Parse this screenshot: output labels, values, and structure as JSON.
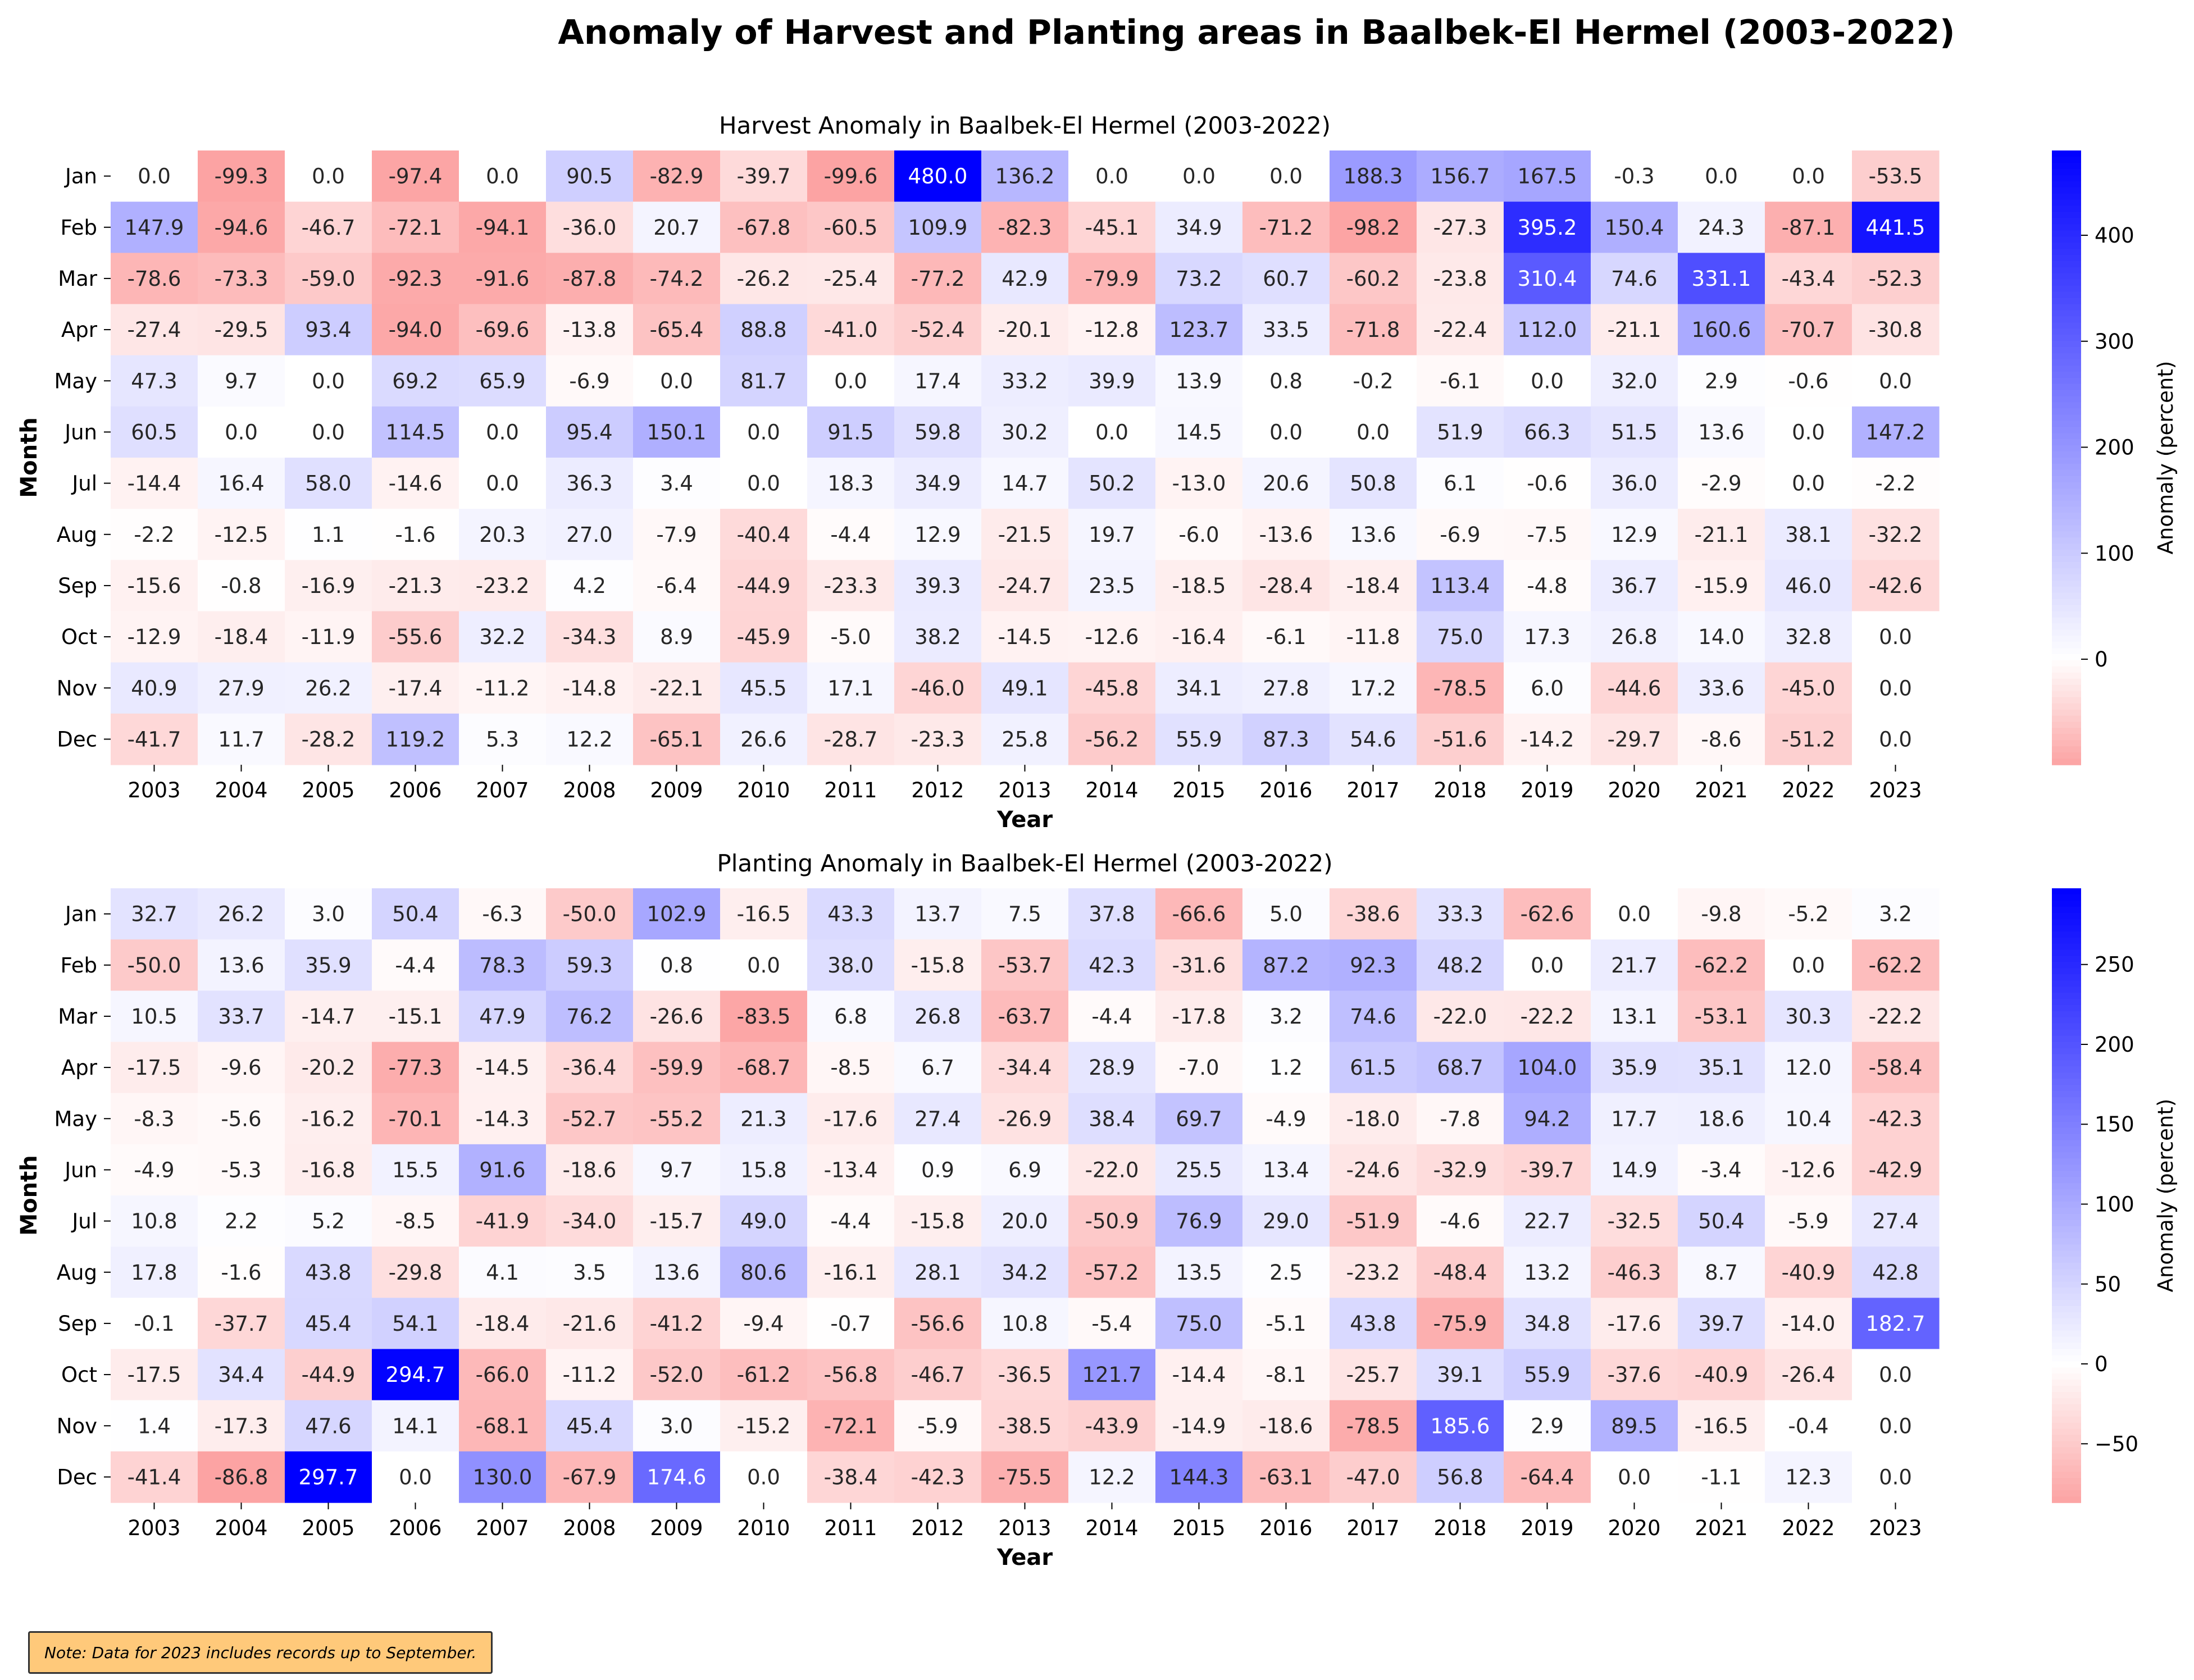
{
  "suptitle": "Anomaly of Harvest and Planting areas in Baalbek-El Hermel (2003-2022)",
  "note": "Note: Data for 2023 includes records up to September.",
  "chart_data": [
    {
      "type": "heatmap",
      "title": "Harvest Anomaly in Baalbek-El Hermel (2003-2022)",
      "xlabel": "Year",
      "ylabel": "Month",
      "colorbar_label": "Anomaly (percent)",
      "colorbar_ticks": [
        "0",
        "100",
        "200",
        "300",
        "400"
      ],
      "colorbar_tick_values": [
        0,
        100,
        200,
        300,
        400
      ],
      "colormap": {
        "low": "#fca3a3",
        "mid": "#ffffff",
        "high": "#0000ff"
      },
      "vmin": -99.6,
      "vmax": 480.0,
      "years": [
        "2003",
        "2004",
        "2005",
        "2006",
        "2007",
        "2008",
        "2009",
        "2010",
        "2011",
        "2012",
        "2013",
        "2014",
        "2015",
        "2016",
        "2017",
        "2018",
        "2019",
        "2020",
        "2021",
        "2022",
        "2023"
      ],
      "months": [
        "Jan",
        "Feb",
        "Mar",
        "Apr",
        "May",
        "Jun",
        "Jul",
        "Aug",
        "Sep",
        "Oct",
        "Nov",
        "Dec"
      ],
      "values": [
        [
          "0.0",
          "-99.3",
          "0.0",
          "-97.4",
          "0.0",
          "90.5",
          "-82.9",
          "-39.7",
          "-99.6",
          "480.0",
          "136.2",
          "0.0",
          "0.0",
          "0.0",
          "188.3",
          "156.7",
          "167.5",
          "-0.3",
          "0.0",
          "0.0",
          "-53.5"
        ],
        [
          "147.9",
          "-94.6",
          "-46.7",
          "-72.1",
          "-94.1",
          "-36.0",
          "20.7",
          "-67.8",
          "-60.5",
          "109.9",
          "-82.3",
          "-45.1",
          "34.9",
          "-71.2",
          "-98.2",
          "-27.3",
          "395.2",
          "150.4",
          "24.3",
          "-87.1",
          "441.5"
        ],
        [
          "-78.6",
          "-73.3",
          "-59.0",
          "-92.3",
          "-91.6",
          "-87.8",
          "-74.2",
          "-26.2",
          "-25.4",
          "-77.2",
          "42.9",
          "-79.9",
          "73.2",
          "60.7",
          "-60.2",
          "-23.8",
          "310.4",
          "74.6",
          "331.1",
          "-43.4",
          "-52.3"
        ],
        [
          "-27.4",
          "-29.5",
          "93.4",
          "-94.0",
          "-69.6",
          "-13.8",
          "-65.4",
          "88.8",
          "-41.0",
          "-52.4",
          "-20.1",
          "-12.8",
          "123.7",
          "33.5",
          "-71.8",
          "-22.4",
          "112.0",
          "-21.1",
          "160.6",
          "-70.7",
          "-30.8"
        ],
        [
          "47.3",
          "9.7",
          "0.0",
          "69.2",
          "65.9",
          "-6.9",
          "0.0",
          "81.7",
          "0.0",
          "17.4",
          "33.2",
          "39.9",
          "13.9",
          "0.8",
          "-0.2",
          "-6.1",
          "0.0",
          "32.0",
          "2.9",
          "-0.6",
          "0.0"
        ],
        [
          "60.5",
          "0.0",
          "0.0",
          "114.5",
          "0.0",
          "95.4",
          "150.1",
          "0.0",
          "91.5",
          "59.8",
          "30.2",
          "0.0",
          "14.5",
          "0.0",
          "0.0",
          "51.9",
          "66.3",
          "51.5",
          "13.6",
          "0.0",
          "147.2"
        ],
        [
          "-14.4",
          "16.4",
          "58.0",
          "-14.6",
          "0.0",
          "36.3",
          "3.4",
          "0.0",
          "18.3",
          "34.9",
          "14.7",
          "50.2",
          "-13.0",
          "20.6",
          "50.8",
          "6.1",
          "-0.6",
          "36.0",
          "-2.9",
          "0.0",
          "-2.2"
        ],
        [
          "-2.2",
          "-12.5",
          "1.1",
          "-1.6",
          "20.3",
          "27.0",
          "-7.9",
          "-40.4",
          "-4.4",
          "12.9",
          "-21.5",
          "19.7",
          "-6.0",
          "-13.6",
          "13.6",
          "-6.9",
          "-7.5",
          "12.9",
          "-21.1",
          "38.1",
          "-32.2"
        ],
        [
          "-15.6",
          "-0.8",
          "-16.9",
          "-21.3",
          "-23.2",
          "4.2",
          "-6.4",
          "-44.9",
          "-23.3",
          "39.3",
          "-24.7",
          "23.5",
          "-18.5",
          "-28.4",
          "-18.4",
          "113.4",
          "-4.8",
          "36.7",
          "-15.9",
          "46.0",
          "-42.6"
        ],
        [
          "-12.9",
          "-18.4",
          "-11.9",
          "-55.6",
          "32.2",
          "-34.3",
          "8.9",
          "-45.9",
          "-5.0",
          "38.2",
          "-14.5",
          "-12.6",
          "-16.4",
          "-6.1",
          "-11.8",
          "75.0",
          "17.3",
          "26.8",
          "14.0",
          "32.8",
          "0.0"
        ],
        [
          "40.9",
          "27.9",
          "26.2",
          "-17.4",
          "-11.2",
          "-14.8",
          "-22.1",
          "45.5",
          "17.1",
          "-46.0",
          "49.1",
          "-45.8",
          "34.1",
          "27.8",
          "17.2",
          "-78.5",
          "6.0",
          "-44.6",
          "33.6",
          "-45.0",
          "0.0"
        ],
        [
          "-41.7",
          "11.7",
          "-28.2",
          "119.2",
          "5.3",
          "12.2",
          "-65.1",
          "26.6",
          "-28.7",
          "-23.3",
          "25.8",
          "-56.2",
          "55.9",
          "87.3",
          "54.6",
          "-51.6",
          "-14.2",
          "-29.7",
          "-8.6",
          "-51.2",
          "0.0"
        ]
      ]
    },
    {
      "type": "heatmap",
      "title": "Planting Anomaly in Baalbek-El Hermel (2003-2022)",
      "xlabel": "Year",
      "ylabel": "Month",
      "colorbar_label": "Anomaly (percent)",
      "colorbar_ticks": [
        "−50",
        "0",
        "50",
        "100",
        "150",
        "200",
        "250"
      ],
      "colorbar_tick_values": [
        -50,
        0,
        50,
        100,
        150,
        200,
        250
      ],
      "colormap": {
        "low": "#fca3a3",
        "mid": "#ffffff",
        "high": "#0000ff"
      },
      "vmin": -86.8,
      "vmax": 297.7,
      "years": [
        "2003",
        "2004",
        "2005",
        "2006",
        "2007",
        "2008",
        "2009",
        "2010",
        "2011",
        "2012",
        "2013",
        "2014",
        "2015",
        "2016",
        "2017",
        "2018",
        "2019",
        "2020",
        "2021",
        "2022",
        "2023"
      ],
      "months": [
        "Jan",
        "Feb",
        "Mar",
        "Apr",
        "May",
        "Jun",
        "Jul",
        "Aug",
        "Sep",
        "Oct",
        "Nov",
        "Dec"
      ],
      "values": [
        [
          "32.7",
          "26.2",
          "3.0",
          "50.4",
          "-6.3",
          "-50.0",
          "102.9",
          "-16.5",
          "43.3",
          "13.7",
          "7.5",
          "37.8",
          "-66.6",
          "5.0",
          "-38.6",
          "33.3",
          "-62.6",
          "0.0",
          "-9.8",
          "-5.2",
          "3.2"
        ],
        [
          "-50.0",
          "13.6",
          "35.9",
          "-4.4",
          "78.3",
          "59.3",
          "0.8",
          "0.0",
          "38.0",
          "-15.8",
          "-53.7",
          "42.3",
          "-31.6",
          "87.2",
          "92.3",
          "48.2",
          "0.0",
          "21.7",
          "-62.2",
          "0.0",
          "-62.2"
        ],
        [
          "10.5",
          "33.7",
          "-14.7",
          "-15.1",
          "47.9",
          "76.2",
          "-26.6",
          "-83.5",
          "6.8",
          "26.8",
          "-63.7",
          "-4.4",
          "-17.8",
          "3.2",
          "74.6",
          "-22.0",
          "-22.2",
          "13.1",
          "-53.1",
          "30.3",
          "-22.2"
        ],
        [
          "-17.5",
          "-9.6",
          "-20.2",
          "-77.3",
          "-14.5",
          "-36.4",
          "-59.9",
          "-68.7",
          "-8.5",
          "6.7",
          "-34.4",
          "28.9",
          "-7.0",
          "1.2",
          "61.5",
          "68.7",
          "104.0",
          "35.9",
          "35.1",
          "12.0",
          "-58.4"
        ],
        [
          "-8.3",
          "-5.6",
          "-16.2",
          "-70.1",
          "-14.3",
          "-52.7",
          "-55.2",
          "21.3",
          "-17.6",
          "27.4",
          "-26.9",
          "38.4",
          "69.7",
          "-4.9",
          "-18.0",
          "-7.8",
          "94.2",
          "17.7",
          "18.6",
          "10.4",
          "-42.3"
        ],
        [
          "-4.9",
          "-5.3",
          "-16.8",
          "15.5",
          "91.6",
          "-18.6",
          "9.7",
          "15.8",
          "-13.4",
          "0.9",
          "6.9",
          "-22.0",
          "25.5",
          "13.4",
          "-24.6",
          "-32.9",
          "-39.7",
          "14.9",
          "-3.4",
          "-12.6",
          "-42.9"
        ],
        [
          "10.8",
          "2.2",
          "5.2",
          "-8.5",
          "-41.9",
          "-34.0",
          "-15.7",
          "49.0",
          "-4.4",
          "-15.8",
          "20.0",
          "-50.9",
          "76.9",
          "29.0",
          "-51.9",
          "-4.6",
          "22.7",
          "-32.5",
          "50.4",
          "-5.9",
          "27.4"
        ],
        [
          "17.8",
          "-1.6",
          "43.8",
          "-29.8",
          "4.1",
          "3.5",
          "13.6",
          "80.6",
          "-16.1",
          "28.1",
          "34.2",
          "-57.2",
          "13.5",
          "2.5",
          "-23.2",
          "-48.4",
          "13.2",
          "-46.3",
          "8.7",
          "-40.9",
          "42.8"
        ],
        [
          "-0.1",
          "-37.7",
          "45.4",
          "54.1",
          "-18.4",
          "-21.6",
          "-41.2",
          "-9.4",
          "-0.7",
          "-56.6",
          "10.8",
          "-5.4",
          "75.0",
          "-5.1",
          "43.8",
          "-75.9",
          "34.8",
          "-17.6",
          "39.7",
          "-14.0",
          "182.7"
        ],
        [
          "-17.5",
          "34.4",
          "-44.9",
          "294.7",
          "-66.0",
          "-11.2",
          "-52.0",
          "-61.2",
          "-56.8",
          "-46.7",
          "-36.5",
          "121.7",
          "-14.4",
          "-8.1",
          "-25.7",
          "39.1",
          "55.9",
          "-37.6",
          "-40.9",
          "-26.4",
          "0.0"
        ],
        [
          "1.4",
          "-17.3",
          "47.6",
          "14.1",
          "-68.1",
          "45.4",
          "3.0",
          "-15.2",
          "-72.1",
          "-5.9",
          "-38.5",
          "-43.9",
          "-14.9",
          "-18.6",
          "-78.5",
          "185.6",
          "2.9",
          "89.5",
          "-16.5",
          "-0.4",
          "0.0"
        ],
        [
          "-41.4",
          "-86.8",
          "297.7",
          "0.0",
          "130.0",
          "-67.9",
          "174.6",
          "0.0",
          "-38.4",
          "-42.3",
          "-75.5",
          "12.2",
          "144.3",
          "-63.1",
          "-47.0",
          "56.8",
          "-64.4",
          "0.0",
          "-1.1",
          "12.3",
          "0.0"
        ]
      ]
    }
  ]
}
